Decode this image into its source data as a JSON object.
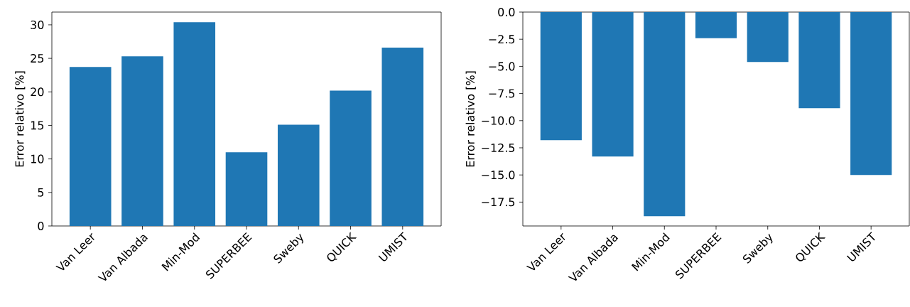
{
  "chart_data": [
    {
      "type": "bar",
      "ylabel": "Error relativo [%]",
      "categories": [
        "Van Leer",
        "Van Albada",
        "Min-Mod",
        "SUPERBEE",
        "Sweby",
        "QUICK",
        "UMIST"
      ],
      "values": [
        23.7,
        25.3,
        30.4,
        11.0,
        15.1,
        20.2,
        26.6
      ],
      "color": "#1f77b4",
      "ylim": [
        0,
        31.9
      ],
      "yticks": [
        0,
        5,
        10,
        15,
        20,
        25,
        30
      ],
      "grid": false
    },
    {
      "type": "bar",
      "ylabel": "Error relativo [%]",
      "categories": [
        "Van Leer",
        "Van Albada",
        "Min-Mod",
        "SUPERBEE",
        "Sweby",
        "QUICK",
        "UMIST"
      ],
      "values": [
        -11.8,
        -13.3,
        -18.8,
        -2.4,
        -4.6,
        -8.85,
        -15.0
      ],
      "color": "#1f77b4",
      "ylim": [
        -19.7,
        0
      ],
      "yticks": [
        {
          "value": 0,
          "label": "0.0"
        },
        {
          "value": -2.5,
          "label": "−2.5"
        },
        {
          "value": -5,
          "label": "−5.0"
        },
        {
          "value": -7.5,
          "label": "−7.5"
        },
        {
          "value": -10,
          "label": "−10.0"
        },
        {
          "value": -12.5,
          "label": "−12.5"
        },
        {
          "value": -15,
          "label": "−15.0"
        },
        {
          "value": -17.5,
          "label": "−17.5"
        }
      ],
      "grid": false
    }
  ]
}
